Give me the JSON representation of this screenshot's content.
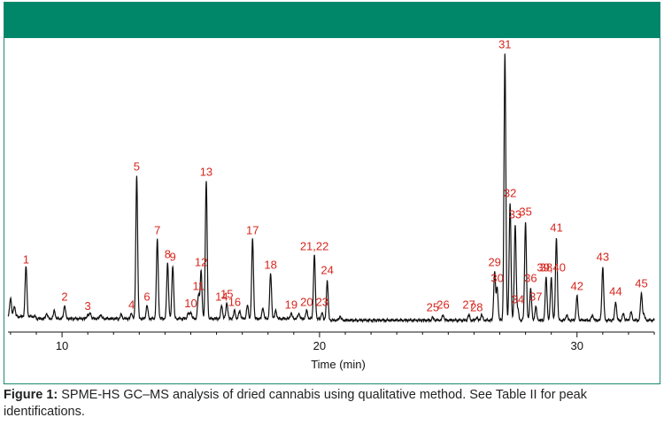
{
  "colors": {
    "header": "#00876a",
    "trace": "#111111",
    "labels": "#d7261e"
  },
  "caption": {
    "prefix": "Figure 1:",
    "text": " SPME-HS GC–MS analysis of dried cannabis using qualitative method. See Table II for peak identifications."
  },
  "chart_data": {
    "type": "line",
    "title": "",
    "xlabel": "Time (min)",
    "ylabel": "",
    "xlim": [
      7.9,
      33.0
    ],
    "ylim": [
      0,
      100
    ],
    "xticks": [
      10,
      20,
      30
    ],
    "grid": false,
    "baseline_peaks": [
      {
        "t": 8.0,
        "h": 7
      },
      {
        "t": 8.15,
        "h": 4
      },
      {
        "t": 9.4,
        "h": 2
      },
      {
        "t": 9.7,
        "h": 3
      },
      {
        "t": 11.1,
        "h": 2
      },
      {
        "t": 11.5,
        "h": 1.5
      },
      {
        "t": 12.3,
        "h": 1.5
      },
      {
        "t": 14.9,
        "h": 2
      },
      {
        "t": 16.9,
        "h": 3
      },
      {
        "t": 17.2,
        "h": 5
      },
      {
        "t": 17.8,
        "h": 4
      },
      {
        "t": 18.3,
        "h": 3
      },
      {
        "t": 19.2,
        "h": 2
      },
      {
        "t": 20.8,
        "h": 1.5
      },
      {
        "t": 26.3,
        "h": 2
      },
      {
        "t": 29.6,
        "h": 2
      },
      {
        "t": 30.6,
        "h": 2
      },
      {
        "t": 31.8,
        "h": 2.5
      },
      {
        "t": 32.1,
        "h": 3
      },
      {
        "t": 32.6,
        "h": 2
      }
    ],
    "peaks": [
      {
        "label": "1",
        "time": 8.6,
        "height": 19
      },
      {
        "label": "2",
        "time": 10.1,
        "height": 5
      },
      {
        "label": "3",
        "time": 11.0,
        "height": 1.5
      },
      {
        "label": "4",
        "time": 12.7,
        "height": 2
      },
      {
        "label": "5",
        "time": 12.9,
        "height": 54
      },
      {
        "label": "6",
        "time": 13.3,
        "height": 5
      },
      {
        "label": "7",
        "time": 13.7,
        "height": 30
      },
      {
        "label": "8",
        "time": 14.1,
        "height": 21
      },
      {
        "label": "9",
        "time": 14.3,
        "height": 20
      },
      {
        "label": "10",
        "time": 15.0,
        "height": 2.5
      },
      {
        "label": "11",
        "time": 15.3,
        "height": 9
      },
      {
        "label": "12",
        "time": 15.4,
        "height": 18
      },
      {
        "label": "13",
        "time": 15.6,
        "height": 52
      },
      {
        "label": "14",
        "time": 16.2,
        "height": 5
      },
      {
        "label": "15",
        "time": 16.4,
        "height": 6
      },
      {
        "label": "16",
        "time": 16.7,
        "height": 3
      },
      {
        "label": "17",
        "time": 17.4,
        "height": 30
      },
      {
        "label": "18",
        "time": 18.1,
        "height": 17
      },
      {
        "label": "19",
        "time": 18.9,
        "height": 2
      },
      {
        "label": "20",
        "time": 19.5,
        "height": 3
      },
      {
        "label": "21,22",
        "time": 19.8,
        "height": 24
      },
      {
        "label": "23",
        "time": 20.1,
        "height": 3
      },
      {
        "label": "24",
        "time": 20.3,
        "height": 15
      },
      {
        "label": "25",
        "time": 24.4,
        "height": 1
      },
      {
        "label": "26",
        "time": 24.8,
        "height": 2
      },
      {
        "label": "27",
        "time": 25.8,
        "height": 2
      },
      {
        "label": "28",
        "time": 26.1,
        "height": 1
      },
      {
        "label": "29",
        "time": 26.8,
        "height": 18
      },
      {
        "label": "30",
        "time": 26.9,
        "height": 12
      },
      {
        "label": "31",
        "time": 27.2,
        "height": 100
      },
      {
        "label": "32",
        "time": 27.4,
        "height": 44
      },
      {
        "label": "33",
        "time": 27.6,
        "height": 36
      },
      {
        "label": "34",
        "time": 27.7,
        "height": 4
      },
      {
        "label": "35",
        "time": 28.0,
        "height": 37
      },
      {
        "label": "36",
        "time": 28.2,
        "height": 12
      },
      {
        "label": "37",
        "time": 28.4,
        "height": 5
      },
      {
        "label": "38",
        "time": 28.8,
        "height": 16
      },
      {
        "label": "39,40",
        "time": 29.0,
        "height": 16
      },
      {
        "label": "41",
        "time": 29.2,
        "height": 31
      },
      {
        "label": "42",
        "time": 30.0,
        "height": 9
      },
      {
        "label": "43",
        "time": 31.0,
        "height": 20
      },
      {
        "label": "44",
        "time": 31.5,
        "height": 7
      },
      {
        "label": "45",
        "time": 32.5,
        "height": 10
      }
    ]
  }
}
